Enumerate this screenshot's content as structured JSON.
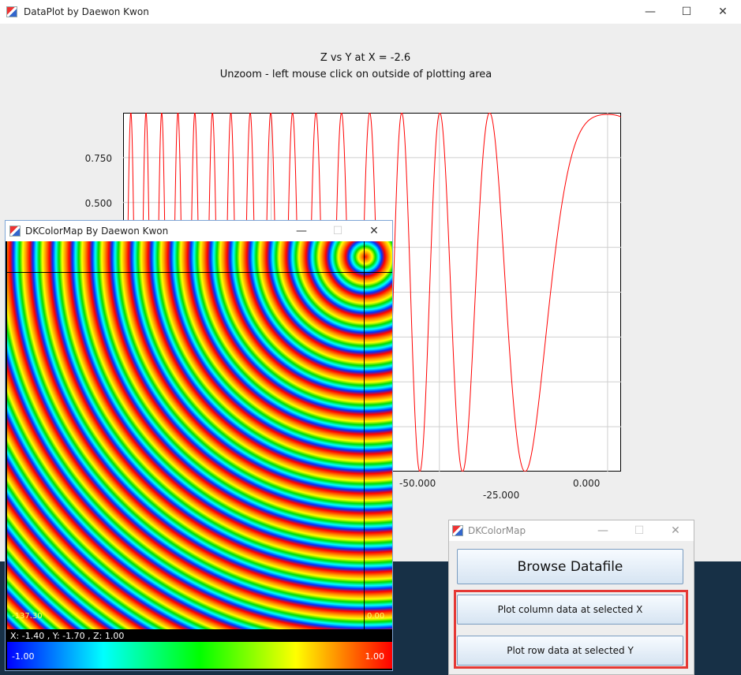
{
  "main_window": {
    "title": "DataPlot by Daewon Kwon",
    "minimize": "—",
    "maximize": "☐",
    "close": "✕"
  },
  "plot": {
    "title": "Z vs Y at X = -2.6",
    "subtitle": "Unzoom - left mouse click on outside of plotting area",
    "y_ticks": [
      "0.750",
      "0.500"
    ],
    "x_ticks": [
      "-50.000",
      "-25.000",
      "0.000"
    ]
  },
  "chart_data": {
    "type": "line",
    "title": "Z vs Y at X = -2.6",
    "series": [
      {
        "color": "#ff0000"
      }
    ],
    "x_ticks": [
      -50,
      -25,
      0
    ],
    "y_ticks": [
      0.75,
      0.5
    ],
    "xlim": [
      -72,
      2
    ],
    "ylim": [
      -1,
      1
    ]
  },
  "colormap_window": {
    "title": "DKColorMap By Daewon Kwon",
    "minimize": "—",
    "maximize": "☐",
    "close": "✕",
    "corner_left": "-137.30",
    "corner_right": "0.00",
    "status": "X: -1.40 , Y: -1.70 , Z: 1.00",
    "scale_min": "-1.00",
    "scale_max": "1.00"
  },
  "control_window": {
    "title": "DKColorMap",
    "minimize": "—",
    "maximize": "☐",
    "close": "✕",
    "browse_label": "Browse Datafile",
    "plot_column_label": "Plot column data at selected X",
    "plot_row_label": "Plot row data at selected Y"
  },
  "colors": {
    "highlight": "#e53935",
    "plot_line": "#ff0000",
    "desktop": "#173046"
  }
}
